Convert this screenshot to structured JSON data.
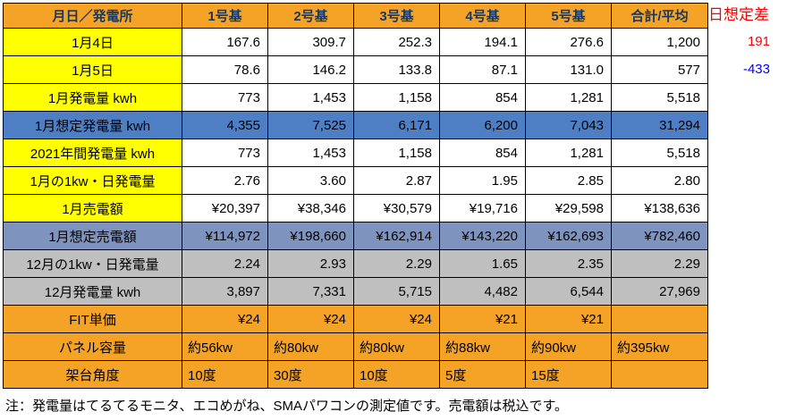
{
  "colors": {
    "orange": "#F5A326",
    "yellow": "#FFFF00",
    "blue": "#4E7FC4",
    "blue2": "#7E94BE",
    "gray": "#BFBFBF",
    "header_text": "#17375E",
    "border": "#000000",
    "positive": "#FF0000",
    "negative": "#0000FF"
  },
  "header": {
    "cells": [
      "月日／発電所",
      "1号基",
      "2号基",
      "3号基",
      "4号基",
      "5号基",
      "合計/平均"
    ]
  },
  "rows": [
    {
      "label": "1月4日",
      "style": "plain",
      "align": "right",
      "values": [
        "167.6",
        "309.7",
        "252.3",
        "194.1",
        "276.6",
        "1,200"
      ]
    },
    {
      "label": "1月5日",
      "style": "plain",
      "align": "right",
      "values": [
        "78.6",
        "146.2",
        "133.8",
        "87.1",
        "131.0",
        "577"
      ]
    },
    {
      "label": "1月発電量 kwh",
      "style": "plain",
      "align": "right",
      "values": [
        "773",
        "1,453",
        "1,158",
        "854",
        "1,281",
        "5,518"
      ]
    },
    {
      "label": "1月想定発電量 kwh",
      "style": "blue",
      "align": "right",
      "values": [
        "4,355",
        "7,525",
        "6,171",
        "6,200",
        "7,043",
        "31,294"
      ]
    },
    {
      "label": "2021年間発電量 kwh",
      "style": "plain",
      "align": "right",
      "values": [
        "773",
        "1,453",
        "1,158",
        "854",
        "1,281",
        "5,518"
      ]
    },
    {
      "label": "1月の1kw・日発電量",
      "style": "plain",
      "align": "right",
      "values": [
        "2.76",
        "3.60",
        "2.87",
        "1.95",
        "2.85",
        "2.80"
      ]
    },
    {
      "label": "1月売電額",
      "style": "plain",
      "align": "right",
      "values": [
        "¥20,397",
        "¥38,346",
        "¥30,579",
        "¥19,716",
        "¥29,598",
        "¥138,636"
      ]
    },
    {
      "label": "1月想定売電額",
      "style": "blue2",
      "align": "right",
      "values": [
        "¥114,972",
        "¥198,660",
        "¥162,914",
        "¥143,220",
        "¥162,693",
        "¥782,460"
      ]
    },
    {
      "label": "12月の1kw・日発電量",
      "style": "gray",
      "align": "right",
      "values": [
        "2.24",
        "2.93",
        "2.29",
        "1.65",
        "2.35",
        "2.29"
      ]
    },
    {
      "label": "12月発電量 kwh",
      "style": "gray",
      "align": "right",
      "values": [
        "3,897",
        "7,331",
        "5,715",
        "4,482",
        "6,544",
        "27,969"
      ]
    },
    {
      "label": "FIT単価",
      "style": "orange",
      "align": "right",
      "values": [
        "¥24",
        "¥24",
        "¥24",
        "¥21",
        "¥21",
        ""
      ]
    },
    {
      "label": "パネル容量",
      "style": "orange",
      "align": "left",
      "values": [
        "約56kw",
        "約80kw",
        "約80kw",
        "約88kw",
        "約90kw",
        "約395kw"
      ]
    },
    {
      "label": "架台角度",
      "style": "orange",
      "align": "left",
      "values": [
        "10度",
        "30度",
        "10度",
        "5度",
        "15度",
        ""
      ]
    }
  ],
  "side": {
    "title": "日想定差",
    "values": [
      {
        "text": "191",
        "color": "#FF0000"
      },
      {
        "text": "-433",
        "color": "#0000FF"
      }
    ]
  },
  "note": "注：発電量はてるてるモニタ、エコめがね、SMAパワコンの測定値です。売電額は税込です。"
}
